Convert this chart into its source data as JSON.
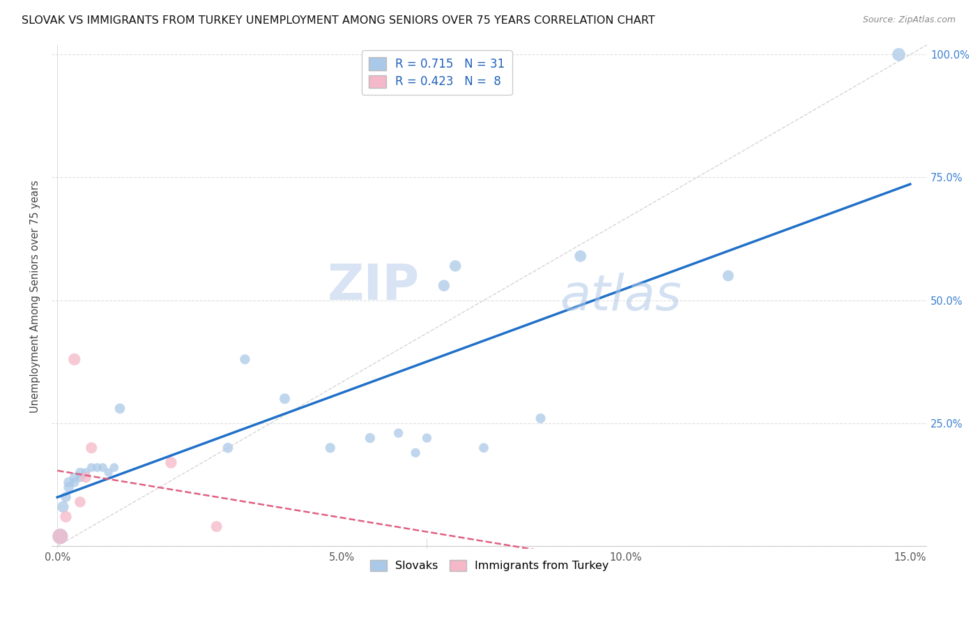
{
  "title": "SLOVAK VS IMMIGRANTS FROM TURKEY UNEMPLOYMENT AMONG SENIORS OVER 75 YEARS CORRELATION CHART",
  "source": "Source: ZipAtlas.com",
  "ylabel": "Unemployment Among Seniors over 75 years",
  "xlim": [
    -0.001,
    0.153
  ],
  "ylim": [
    -0.005,
    1.02
  ],
  "xticks": [
    0.0,
    0.05,
    0.1,
    0.15
  ],
  "xtick_labels": [
    "0.0%",
    "5.0%",
    "10.0%",
    "15.0%"
  ],
  "yticks": [
    0.0,
    0.25,
    0.5,
    0.75,
    1.0
  ],
  "ytick_labels_right": [
    "",
    "25.0%",
    "50.0%",
    "75.0%",
    "100.0%"
  ],
  "legend_R1": "0.715",
  "legend_N1": "31",
  "legend_R2": "0.423",
  "legend_N2": "8",
  "color_slovak": "#aac9e8",
  "color_turkey": "#f4b8c8",
  "color_line_slovak": "#2070c8",
  "color_line_turkey": "#e06080",
  "color_diag": "#d0d0d0",
  "watermark_zip": "ZIP",
  "watermark_atlas": "atlas",
  "slovak_x": [
    0.0005,
    0.001,
    0.0015,
    0.002,
    0.002,
    0.003,
    0.003,
    0.004,
    0.004,
    0.005,
    0.006,
    0.007,
    0.008,
    0.009,
    0.01,
    0.011,
    0.03,
    0.033,
    0.04,
    0.048,
    0.055,
    0.06,
    0.063,
    0.065,
    0.068,
    0.07,
    0.075,
    0.085,
    0.092,
    0.118,
    0.148
  ],
  "slovak_y": [
    0.02,
    0.08,
    0.1,
    0.12,
    0.13,
    0.13,
    0.14,
    0.14,
    0.15,
    0.15,
    0.16,
    0.16,
    0.16,
    0.15,
    0.16,
    0.28,
    0.2,
    0.38,
    0.3,
    0.2,
    0.22,
    0.23,
    0.19,
    0.22,
    0.53,
    0.57,
    0.2,
    0.26,
    0.59,
    0.55,
    1.0
  ],
  "slovak_size": [
    900,
    500,
    400,
    400,
    400,
    350,
    350,
    350,
    350,
    300,
    300,
    300,
    300,
    280,
    300,
    400,
    400,
    380,
    420,
    380,
    380,
    330,
    330,
    330,
    500,
    500,
    350,
    370,
    520,
    470,
    650
  ],
  "turkey_x": [
    0.0005,
    0.0015,
    0.003,
    0.004,
    0.005,
    0.006,
    0.02,
    0.028
  ],
  "turkey_y": [
    0.02,
    0.06,
    0.38,
    0.09,
    0.14,
    0.2,
    0.17,
    0.04
  ],
  "turkey_size": [
    900,
    500,
    550,
    450,
    450,
    480,
    500,
    470
  ],
  "grid_color": "#e0e0e0",
  "grid_linestyle": "--",
  "background": "#ffffff"
}
